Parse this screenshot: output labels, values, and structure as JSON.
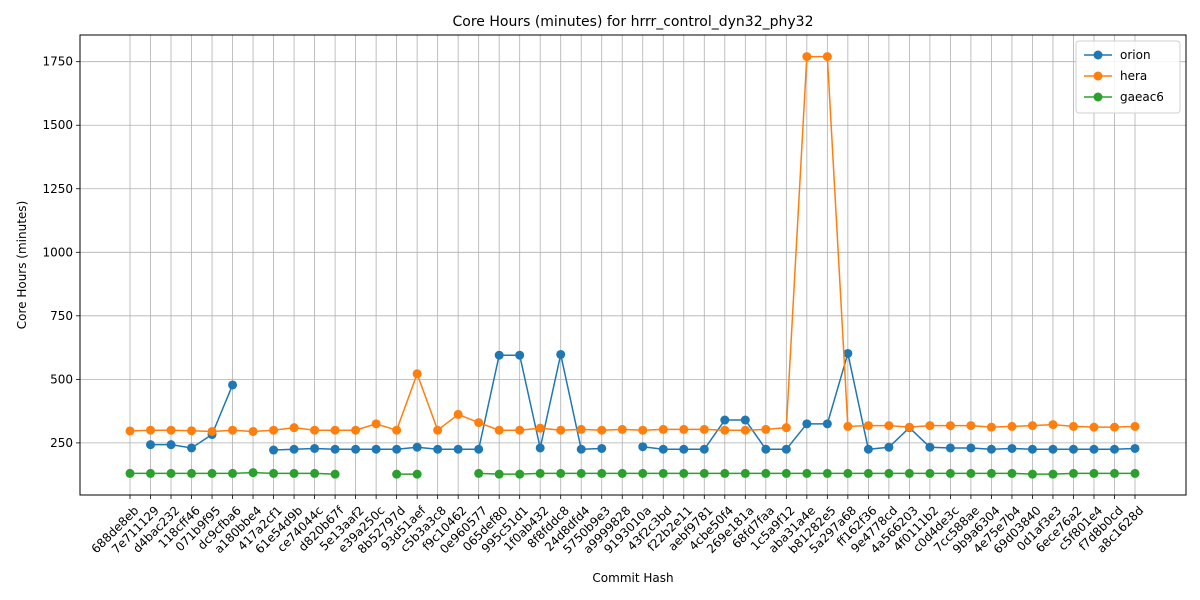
{
  "chart_data": {
    "type": "line",
    "title": "Core Hours (minutes) for hrrr_control_dyn32_phy32",
    "xlabel": "Commit Hash",
    "ylabel": "Core Hours (minutes)",
    "ylim": [
      45,
      1855
    ],
    "yticks": [
      250,
      500,
      750,
      1000,
      1250,
      1500,
      1750
    ],
    "grid": true,
    "legend_position": "top-right",
    "categories": [
      "688de8eb",
      "7e711129",
      "d4bac232",
      "118cff46",
      "071b9f95",
      "dc9cfba6",
      "a180bbe4",
      "417a2cf1",
      "61e54d9b",
      "ce74044c",
      "d820b67f",
      "5e13aaf2",
      "e39a250c",
      "8b52797d",
      "93d51aef",
      "c5b3a3c8",
      "f9c10462",
      "0e960577",
      "065def80",
      "995c51d1",
      "1f0ab432",
      "8f8fddc8",
      "24d8dfd4",
      "5750b9e3",
      "a9999828",
      "9193010a",
      "43f2c3bd",
      "f22b2e11",
      "aebf9781",
      "4cbe50f4",
      "269e181a",
      "68fd7faa",
      "1c5a9f12",
      "aba31a4e",
      "b81282e5",
      "5a297a68",
      "ff162f36",
      "9e4778cd",
      "4a566203",
      "4f0111b2",
      "c0d4de3c",
      "7cc588ae",
      "9b9a6304",
      "4e75e7b4",
      "69d03840",
      "0d1af3e3",
      "6ece76a2",
      "c5f801e4",
      "f7d8b0cd",
      "a8c1628d"
    ],
    "series": [
      {
        "name": "orion",
        "color": "#1f77b4",
        "values": [
          null,
          243,
          243,
          230,
          283,
          478,
          null,
          222,
          225,
          228,
          225,
          225,
          225,
          225,
          233,
          225,
          225,
          225,
          595,
          595,
          230,
          598,
          225,
          228,
          null,
          235,
          225,
          225,
          225,
          340,
          340,
          225,
          225,
          325,
          325,
          602,
          225,
          233,
          310,
          233,
          230,
          230,
          225,
          228,
          225,
          225,
          225,
          225,
          225,
          228
        ]
      },
      {
        "name": "hera",
        "color": "#ff7f0e",
        "values": [
          297,
          300,
          300,
          298,
          295,
          300,
          295,
          300,
          310,
          300,
          300,
          300,
          325,
          300,
          522,
          300,
          362,
          330,
          300,
          300,
          308,
          300,
          303,
          300,
          303,
          300,
          303,
          303,
          303,
          300,
          300,
          303,
          310,
          1770,
          1770,
          315,
          318,
          318,
          312,
          318,
          318,
          318,
          312,
          315,
          318,
          322,
          315,
          312,
          312,
          315
        ]
      },
      {
        "name": "gaeac6",
        "color": "#2ca02c",
        "values": [
          130,
          130,
          130,
          130,
          130,
          130,
          133,
          130,
          130,
          130,
          127,
          null,
          null,
          127,
          127,
          null,
          null,
          130,
          127,
          127,
          130,
          130,
          130,
          130,
          130,
          130,
          130,
          130,
          130,
          130,
          130,
          130,
          130,
          130,
          130,
          130,
          130,
          130,
          130,
          130,
          130,
          130,
          130,
          130,
          127,
          127,
          130,
          130,
          130,
          130
        ]
      }
    ]
  }
}
